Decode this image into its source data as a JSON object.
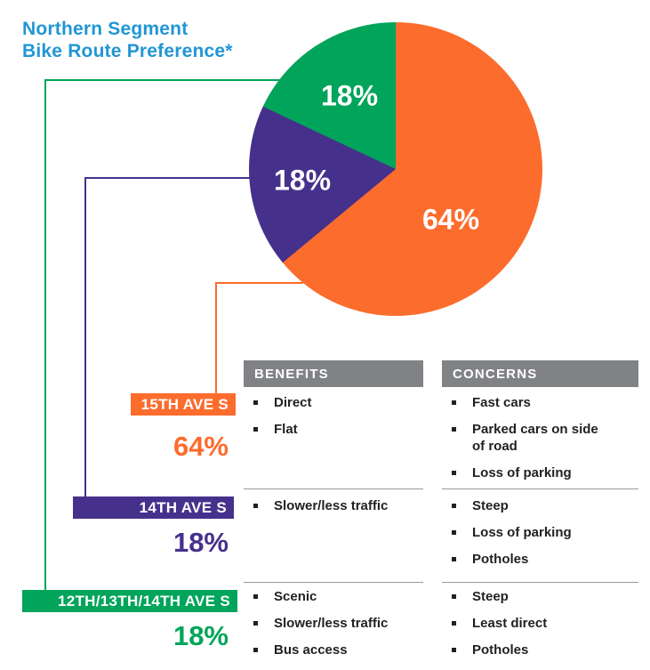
{
  "title": {
    "line1": "Northern Segment",
    "line2": "Bike Route Preference*",
    "color": "#2196D4"
  },
  "chart_data": {
    "type": "pie",
    "title": "Northern Segment Bike Route Preference*",
    "categories": [
      "15TH AVE S",
      "14TH AVE S",
      "12TH/13TH/14TH AVE S"
    ],
    "values": [
      64,
      18,
      18
    ],
    "unit": "%",
    "slice_labels": [
      "64%",
      "18%",
      "18%"
    ],
    "colors": [
      "#FC6C2D",
      "#45318C",
      "#00A45A"
    ],
    "start_angle_deg": 0,
    "direction": "clockwise",
    "legend": "none",
    "label_text_color": "#ffffff"
  },
  "table": {
    "benefits_header": "BENEFITS",
    "concerns_header": "CONCERNS",
    "header_bg": "#808285",
    "rows": [
      {
        "route": "15TH AVE S",
        "pct": "64%",
        "color": "#FC6C2D",
        "benefits": [
          "Direct",
          "Flat"
        ],
        "concerns": [
          "Fast cars",
          "Parked cars on side of road",
          "Loss of parking"
        ]
      },
      {
        "route": "14TH AVE S",
        "pct": "18%",
        "color": "#45318C",
        "benefits": [
          "Slower/less traffic"
        ],
        "concerns": [
          "Steep",
          "Loss of parking",
          "Potholes"
        ]
      },
      {
        "route": "12TH/13TH/14TH AVE S",
        "pct": "18%",
        "color": "#00A45A",
        "benefits": [
          "Scenic",
          "Slower/less traffic",
          "Bus access"
        ],
        "concerns": [
          "Steep",
          "Least direct",
          "Potholes"
        ]
      }
    ]
  }
}
